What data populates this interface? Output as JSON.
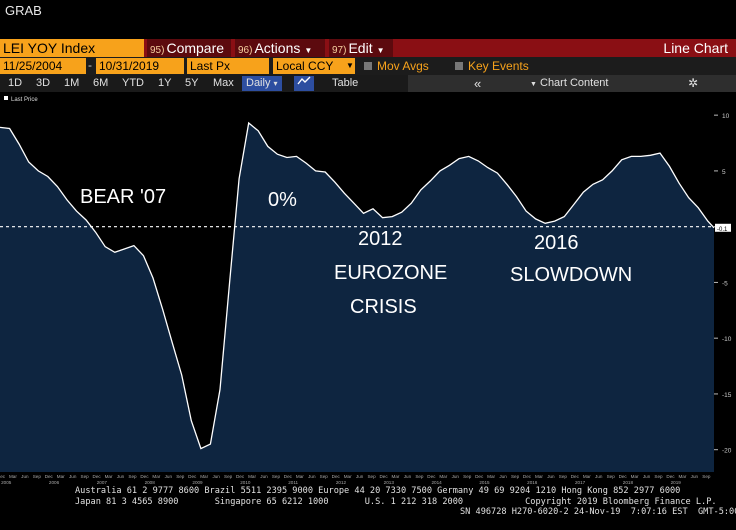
{
  "window_title": "GRAB",
  "toolbar": {
    "ticker": "LEI YOY Index",
    "compare": {
      "num": "95)",
      "label": "Compare"
    },
    "actions": {
      "num": "96)",
      "label": "Actions"
    },
    "edit": {
      "num": "97)",
      "label": "Edit"
    },
    "view_title": "Line Chart"
  },
  "range_bar": {
    "start_date": "11/25/2004",
    "end_date": "10/31/2019",
    "price_field": "Last Px",
    "currency": "Local CCY",
    "mov_avgs": "Mov Avgs",
    "key_events": "Key Events"
  },
  "period_bar": {
    "buttons": [
      "1D",
      "3D",
      "1M",
      "6M",
      "YTD",
      "1Y",
      "5Y",
      "Max"
    ],
    "frequency": "Daily",
    "table": "Table",
    "chart_content": "Chart Content"
  },
  "colors": {
    "accent": "#f7a21b",
    "menu_bar": "#8a0f14",
    "chart_fill": "#0e2540",
    "line": "#ffffff"
  },
  "chart_data": {
    "type": "area",
    "legend": "Last Price",
    "series_name": "Last Price",
    "y_ticks": [
      "10",
      "5",
      "0",
      "-5",
      "-10",
      "-15",
      "-20"
    ],
    "ylim": [
      -22,
      11
    ],
    "reference_line": 0,
    "last_value_label": "-0.1",
    "x_years": [
      "2005",
      "2006",
      "2007",
      "2008",
      "2009",
      "2010",
      "2011",
      "2012",
      "2013",
      "2014",
      "2015",
      "2016",
      "2017",
      "2018",
      "2019"
    ],
    "x_month_labels": [
      "Dec",
      "Mar",
      "Jun",
      "Sep"
    ],
    "x": [
      2004.9,
      2005.1,
      2005.3,
      2005.5,
      2005.7,
      2005.9,
      2006.1,
      2006.3,
      2006.5,
      2006.7,
      2006.9,
      2007.1,
      2007.3,
      2007.5,
      2007.7,
      2007.9,
      2008.1,
      2008.3,
      2008.5,
      2008.7,
      2008.9,
      2009.1,
      2009.3,
      2009.5,
      2009.7,
      2009.9,
      2010.1,
      2010.3,
      2010.5,
      2010.7,
      2010.9,
      2011.1,
      2011.3,
      2011.5,
      2011.7,
      2011.9,
      2012.1,
      2012.3,
      2012.5,
      2012.7,
      2012.9,
      2013.1,
      2013.3,
      2013.5,
      2013.7,
      2013.9,
      2014.1,
      2014.3,
      2014.5,
      2014.7,
      2014.9,
      2015.1,
      2015.3,
      2015.5,
      2015.7,
      2015.9,
      2016.1,
      2016.3,
      2016.5,
      2016.7,
      2016.9,
      2017.1,
      2017.3,
      2017.5,
      2017.7,
      2017.9,
      2018.1,
      2018.3,
      2018.5,
      2018.7,
      2018.9,
      2019.1,
      2019.3,
      2019.5,
      2019.7,
      2019.83
    ],
    "y": [
      8.9,
      8.8,
      7.4,
      5.8,
      5.0,
      4.5,
      3.6,
      2.4,
      1.4,
      0.6,
      -0.5,
      -1.8,
      -2.3,
      -2.0,
      -1.7,
      -2.6,
      -4.6,
      -7.4,
      -10.4,
      -13.3,
      -17.4,
      -19.9,
      -19.5,
      -14.6,
      -5.0,
      4.3,
      9.3,
      8.6,
      7.2,
      6.5,
      6.2,
      6.3,
      5.7,
      5.0,
      4.9,
      4.0,
      3.0,
      2.1,
      1.2,
      1.6,
      0.8,
      0.9,
      1.3,
      2.1,
      3.3,
      4.1,
      5.0,
      5.5,
      6.1,
      6.3,
      5.9,
      5.3,
      4.8,
      3.8,
      2.7,
      1.4,
      0.7,
      0.3,
      0.5,
      0.9,
      2.0,
      3.1,
      3.8,
      4.2,
      5.0,
      6.0,
      6.3,
      6.3,
      6.4,
      6.6,
      5.4,
      3.9,
      2.6,
      1.7,
      0.5,
      -0.1
    ]
  },
  "annotations": {
    "bear": "BEAR '07",
    "zero": "0%",
    "eurozone_year": "2012",
    "eurozone_1": "EUROZONE",
    "eurozone_2": "CRISIS",
    "slowdown_year": "2016",
    "slowdown": "SLOWDOWN"
  },
  "footer": {
    "line1": "Australia 61 2 9777 8600 Brazil 5511 2395 9000 Europe 44 20 7330 7500 Germany 49 69 9204 1210 Hong Kong 852 2977 6000",
    "line2": "Japan 81 3 4565 8900       Singapore 65 6212 1000       U.S. 1 212 318 2000            Copyright 2019 Bloomberg Finance L.P.",
    "line3": "SN 496728 H270-6020-2 24-Nov-19  7:07:16 EST  GMT-5:00"
  }
}
